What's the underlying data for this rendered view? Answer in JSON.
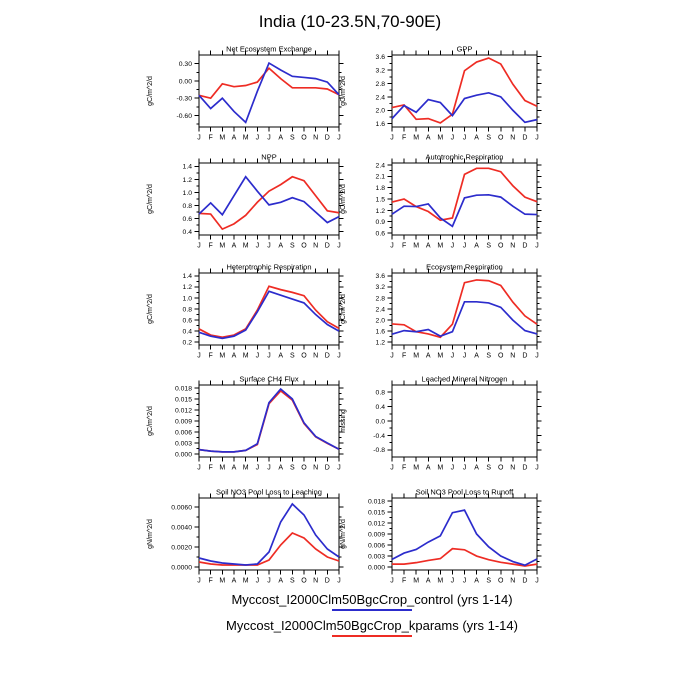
{
  "page": {
    "title": "India (10-23.5N,70-90E)"
  },
  "months": [
    "J",
    "F",
    "M",
    "A",
    "M",
    "J",
    "J",
    "A",
    "S",
    "O",
    "N",
    "D",
    "J"
  ],
  "colors": {
    "control": "#2c2ccc",
    "kparams": "#ee2c24",
    "axis": "#000000"
  },
  "legend": {
    "entries": [
      {
        "name": "control",
        "label": "Myccost_I2000Clm50BgcCrop_control (yrs 1-14)",
        "color": "#2c2ccc"
      },
      {
        "name": "kparams",
        "label": "Myccost_I2000Clm50BgcCrop_kparams (yrs 1-14)",
        "color": "#ee2c24"
      }
    ]
  },
  "chart_data": [
    {
      "type": "line",
      "title": "Net Ecosystem Exchange",
      "ylabel": "gC/m^2/d",
      "ylim": [
        -0.8,
        0.45
      ],
      "yticks": [
        -0.6,
        -0.3,
        0.0,
        0.3
      ],
      "ytick_decimals": 2,
      "minor_step": 0.15,
      "series": [
        {
          "name": "control",
          "values": [
            -0.25,
            -0.48,
            -0.3,
            -0.53,
            -0.72,
            -0.18,
            0.31,
            0.19,
            0.08,
            0.06,
            0.04,
            -0.02,
            -0.24
          ]
        },
        {
          "name": "kparams",
          "values": [
            -0.25,
            -0.3,
            -0.05,
            -0.1,
            -0.08,
            -0.02,
            0.22,
            0.04,
            -0.12,
            -0.12,
            -0.12,
            -0.14,
            -0.24
          ]
        }
      ]
    },
    {
      "type": "line",
      "title": "GPP",
      "ylabel": "gC/m^2/d",
      "ylim": [
        1.5,
        3.65
      ],
      "yticks": [
        1.6,
        2.0,
        2.4,
        2.8,
        3.2,
        3.6
      ],
      "ytick_decimals": 1,
      "minor_step": 0.2,
      "series": [
        {
          "name": "control",
          "values": [
            1.75,
            2.14,
            1.94,
            2.32,
            2.23,
            1.84,
            2.35,
            2.45,
            2.52,
            2.4,
            2.0,
            1.64,
            1.72
          ]
        },
        {
          "name": "kparams",
          "values": [
            2.08,
            2.16,
            1.73,
            1.75,
            1.62,
            1.88,
            3.18,
            3.44,
            3.56,
            3.38,
            2.78,
            2.29,
            2.12
          ]
        }
      ]
    },
    {
      "type": "line",
      "title": "NPP",
      "ylabel": "gC/m^2/d",
      "ylim": [
        0.35,
        1.45
      ],
      "yticks": [
        0.4,
        0.6,
        0.8,
        1.0,
        1.2,
        1.4
      ],
      "ytick_decimals": 1,
      "minor_step": 0.1,
      "series": [
        {
          "name": "control",
          "values": [
            0.67,
            0.84,
            0.66,
            0.95,
            1.24,
            1.02,
            0.81,
            0.85,
            0.92,
            0.86,
            0.7,
            0.54,
            0.63
          ]
        },
        {
          "name": "kparams",
          "values": [
            0.68,
            0.67,
            0.44,
            0.52,
            0.65,
            0.85,
            1.02,
            1.12,
            1.24,
            1.18,
            0.95,
            0.72,
            0.69
          ]
        }
      ]
    },
    {
      "type": "line",
      "title": "Autotrophic Respiration",
      "ylabel": "gC/m^2/d",
      "ylim": [
        0.55,
        2.45
      ],
      "yticks": [
        0.6,
        0.9,
        1.2,
        1.5,
        1.8,
        2.1,
        2.4
      ],
      "ytick_decimals": 1,
      "minor_step": 0.15,
      "series": [
        {
          "name": "control",
          "values": [
            1.1,
            1.31,
            1.3,
            1.37,
            1.0,
            0.78,
            1.53,
            1.6,
            1.61,
            1.55,
            1.31,
            1.1,
            1.09
          ]
        },
        {
          "name": "kparams",
          "values": [
            1.42,
            1.5,
            1.3,
            1.17,
            0.94,
            1.0,
            2.15,
            2.31,
            2.31,
            2.22,
            1.85,
            1.55,
            1.43
          ]
        }
      ]
    },
    {
      "type": "line",
      "title": "Heterotrophic Respiration",
      "ylabel": "gC/m^2/d",
      "ylim": [
        0.15,
        1.45
      ],
      "yticks": [
        0.2,
        0.4,
        0.6,
        0.8,
        1.0,
        1.2,
        1.4
      ],
      "ytick_decimals": 1,
      "minor_step": 0.1,
      "series": [
        {
          "name": "control",
          "values": [
            0.38,
            0.31,
            0.27,
            0.31,
            0.42,
            0.75,
            1.12,
            1.05,
            0.98,
            0.91,
            0.7,
            0.52,
            0.4
          ]
        },
        {
          "name": "kparams",
          "values": [
            0.44,
            0.33,
            0.29,
            0.33,
            0.44,
            0.78,
            1.21,
            1.15,
            1.1,
            1.04,
            0.78,
            0.57,
            0.45
          ]
        }
      ]
    },
    {
      "type": "line",
      "title": "Ecosystem Respiration",
      "ylabel": "gC/m^2/d",
      "ylim": [
        1.1,
        3.7
      ],
      "yticks": [
        1.2,
        1.6,
        2.0,
        2.4,
        2.8,
        3.2,
        3.6
      ],
      "ytick_decimals": 1,
      "minor_step": 0.2,
      "series": [
        {
          "name": "control",
          "values": [
            1.49,
            1.62,
            1.58,
            1.66,
            1.42,
            1.58,
            2.66,
            2.66,
            2.62,
            2.46,
            2.0,
            1.62,
            1.5
          ]
        },
        {
          "name": "kparams",
          "values": [
            1.86,
            1.83,
            1.58,
            1.5,
            1.38,
            1.85,
            3.35,
            3.45,
            3.42,
            3.25,
            2.65,
            2.15,
            1.85
          ]
        }
      ]
    },
    {
      "type": "line",
      "title": "Surface CH4 Flux",
      "ylabel": "gC/m^2/d",
      "ylim": [
        -0.0008,
        0.0188
      ],
      "yticks": [
        0.0,
        0.003,
        0.006,
        0.009,
        0.012,
        0.015,
        0.018
      ],
      "ytick_decimals": 3,
      "minor_step": 0.0015,
      "series": [
        {
          "name": "control",
          "values": [
            0.0012,
            0.0008,
            0.0006,
            0.0006,
            0.001,
            0.0028,
            0.014,
            0.0177,
            0.015,
            0.0085,
            0.0048,
            0.003,
            0.0013
          ]
        },
        {
          "name": "kparams",
          "values": [
            0.0012,
            0.0008,
            0.0006,
            0.0006,
            0.001,
            0.0026,
            0.0137,
            0.0172,
            0.0147,
            0.0083,
            0.0047,
            0.0029,
            0.0013
          ]
        }
      ]
    },
    {
      "type": "line",
      "title": "Leached Mineral Nitrogen",
      "ylabel": "missing",
      "ylim": [
        -1.0,
        1.0
      ],
      "yticks": [
        -0.8,
        -0.4,
        0.0,
        0.4,
        0.8
      ],
      "ytick_decimals": 1,
      "minor_step": 0.2,
      "series": []
    },
    {
      "type": "line",
      "title": "Soil NO3 Pool Loss to Leaching",
      "ylabel": "gN/m^2/d",
      "ylim": [
        -0.0003,
        0.0069
      ],
      "yticks": [
        0.0,
        0.002,
        0.004,
        0.006
      ],
      "ytick_decimals": 4,
      "minor_step": 0.001,
      "series": [
        {
          "name": "control",
          "values": [
            0.0009,
            0.0006,
            0.0004,
            0.0003,
            0.0002,
            0.0003,
            0.0015,
            0.0045,
            0.0063,
            0.0052,
            0.0032,
            0.0018,
            0.001
          ]
        },
        {
          "name": "kparams",
          "values": [
            0.0005,
            0.0003,
            0.0002,
            0.0002,
            0.0002,
            0.0002,
            0.0007,
            0.0022,
            0.0034,
            0.0029,
            0.0018,
            0.001,
            0.0006
          ]
        }
      ]
    },
    {
      "type": "line",
      "title": "Soil NO3 Pool Loss to Runoff",
      "ylabel": "gN/m^2/d",
      "ylim": [
        -0.0008,
        0.0188
      ],
      "yticks": [
        0.0,
        0.003,
        0.006,
        0.009,
        0.012,
        0.015,
        0.018
      ],
      "ytick_decimals": 3,
      "minor_step": 0.0015,
      "series": [
        {
          "name": "control",
          "values": [
            0.0021,
            0.0038,
            0.0048,
            0.0068,
            0.0085,
            0.0148,
            0.0155,
            0.009,
            0.0055,
            0.003,
            0.0015,
            0.0005,
            0.0022
          ]
        },
        {
          "name": "kparams",
          "values": [
            0.0008,
            0.0008,
            0.0012,
            0.0018,
            0.0023,
            0.005,
            0.0047,
            0.003,
            0.002,
            0.0013,
            0.0008,
            0.0003,
            0.0008
          ]
        }
      ]
    }
  ]
}
